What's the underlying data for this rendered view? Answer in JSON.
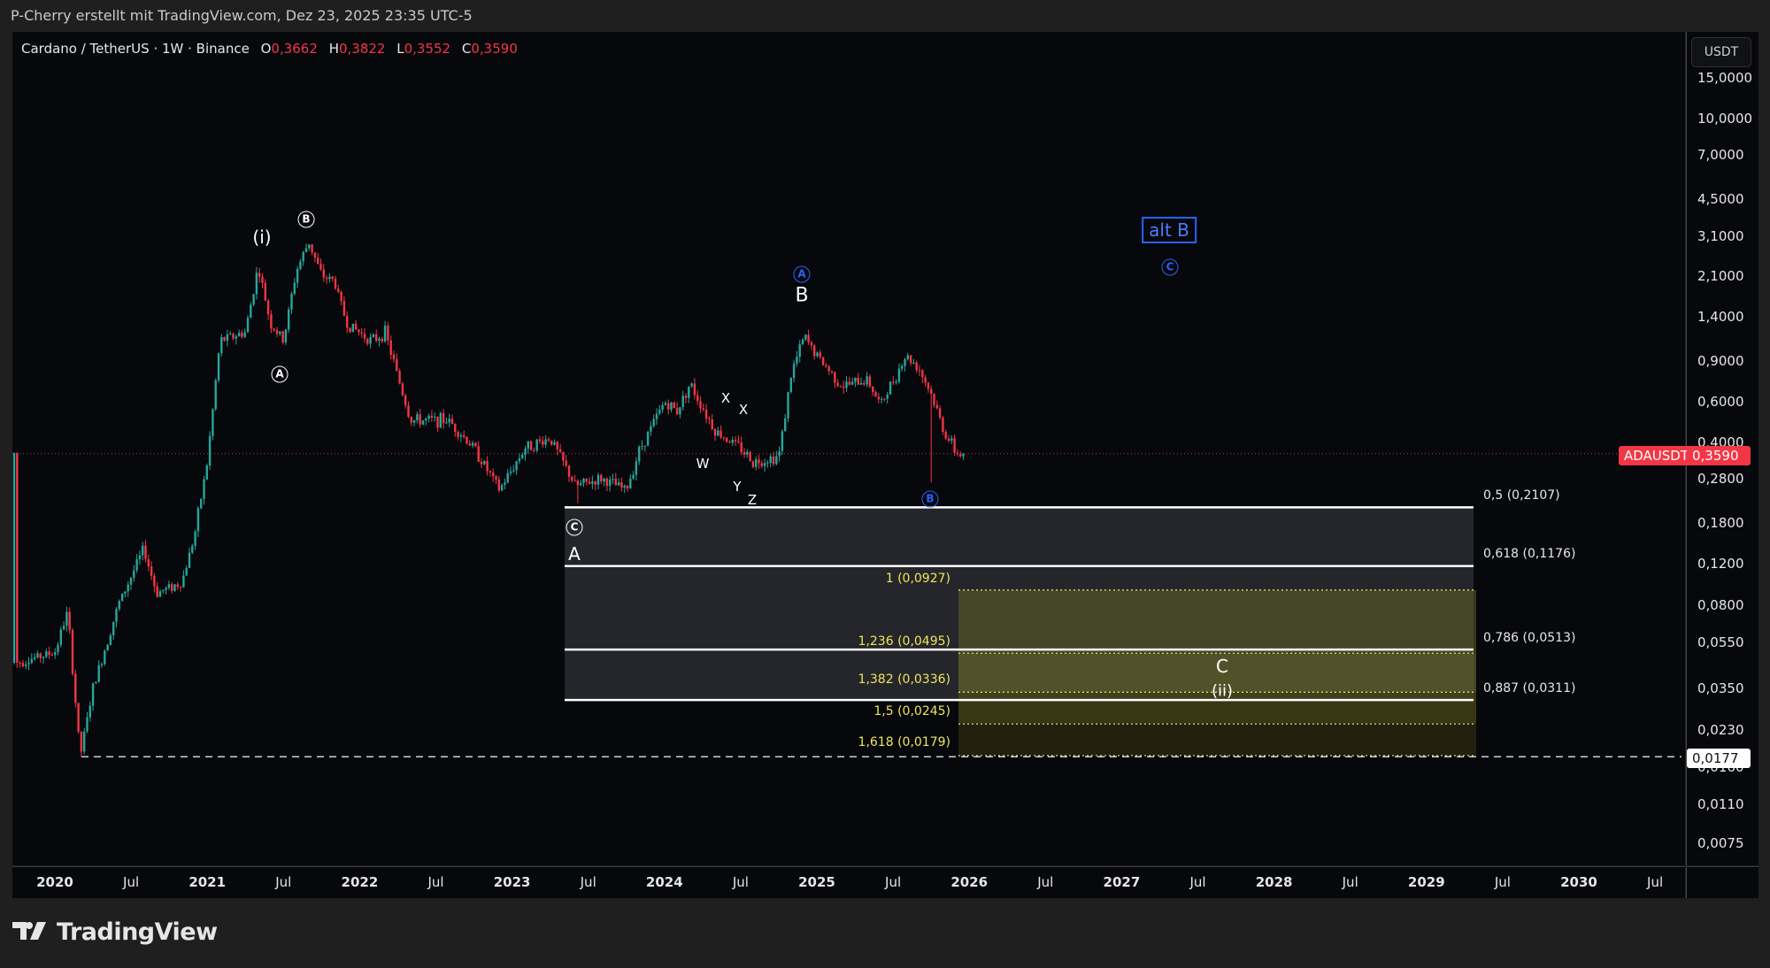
{
  "header": {
    "attribution": "P-Cherry erstellt mit TradingView.com, Dez 23, 2025 23:35 UTC-5"
  },
  "legend": {
    "symbol": "Cardano / TetherUS · 1W · Binance",
    "o_label": "O",
    "o_value": "0,3662",
    "h_label": "H",
    "h_value": "0,3822",
    "l_label": "L",
    "l_value": "0,3552",
    "c_label": "C",
    "c_value": "0,3590"
  },
  "price_axis": {
    "currency": "USDT",
    "ticks": [
      "15,0000",
      "10,0000",
      "7,0000",
      "4,5000",
      "3,1000",
      "2,1000",
      "1,4000",
      "0,9000",
      "0,6000",
      "0,4000",
      "0,2800",
      "0,1800",
      "0,1200",
      "0,0800",
      "0,0550",
      "0,0350",
      "0,0230",
      "0,0160",
      "0,0110",
      "0,0075"
    ],
    "last_price_tag": {
      "symbol": "ADAUSDT",
      "value": "0,3590"
    },
    "low_tag": "0,0177"
  },
  "time_axis": {
    "ticks": [
      {
        "label": "2020",
        "year": true
      },
      {
        "label": "Jul",
        "year": false
      },
      {
        "label": "2021",
        "year": true
      },
      {
        "label": "Jul",
        "year": false
      },
      {
        "label": "2022",
        "year": true
      },
      {
        "label": "Jul",
        "year": false
      },
      {
        "label": "2023",
        "year": true
      },
      {
        "label": "Jul",
        "year": false
      },
      {
        "label": "2024",
        "year": true
      },
      {
        "label": "Jul",
        "year": false
      },
      {
        "label": "2025",
        "year": true
      },
      {
        "label": "Jul",
        "year": false
      },
      {
        "label": "2026",
        "year": true
      },
      {
        "label": "Jul",
        "year": false
      },
      {
        "label": "2027",
        "year": true
      },
      {
        "label": "Jul",
        "year": false
      },
      {
        "label": "2028",
        "year": true
      },
      {
        "label": "Jul",
        "year": false
      },
      {
        "label": "2029",
        "year": true
      },
      {
        "label": "Jul",
        "year": false
      },
      {
        "label": "2030",
        "year": true
      },
      {
        "label": "Jul",
        "year": false
      }
    ]
  },
  "annotations": {
    "wave_i": "(i)",
    "wave_circ_b_top": "B",
    "wave_circ_a_low": "A",
    "wave_circ_c": "C",
    "wave_A": "A",
    "wave_B": "B",
    "blue_circ_a": "A",
    "blue_circ_b": "B",
    "blue_circ_c": "C",
    "alt_b": "alt B",
    "w": "W",
    "x1": "X",
    "x2": "X",
    "y": "Y",
    "z": "Z",
    "wave_C": "C",
    "wave_ii": "(ii)"
  },
  "fib_retracement": {
    "levels": [
      {
        "label": "0,5 (0,2107)"
      },
      {
        "label": "0,618 (0,1176)"
      },
      {
        "label": "0,786 (0,0513)"
      },
      {
        "label": "0,887 (0,0311)"
      }
    ]
  },
  "fib_extension": {
    "levels": [
      {
        "label": "1 (0,0927)"
      },
      {
        "label": "1,236 (0,0495)"
      },
      {
        "label": "1,382 (0,0336)"
      },
      {
        "label": "1,5 (0,0245)"
      },
      {
        "label": "1,618 (0,0179)"
      }
    ]
  },
  "branding": {
    "logo_text": "TradingView"
  },
  "colors": {
    "up": "#26a69a",
    "down": "#f23645",
    "fib_ext": "#f0e35e",
    "wave_blue": "#2962ff"
  },
  "chart_data": {
    "type": "candlestick",
    "title": "Cardano / TetherUS · 1W · Binance",
    "symbol": "ADAUSDT",
    "interval": "1W",
    "y_scale": "log",
    "ylim": [
      0.0075,
      15
    ],
    "x_range": [
      "2019-10",
      "2030-11"
    ],
    "last": {
      "open": 0.3662,
      "high": 0.3822,
      "low": 0.3552,
      "close": 0.359
    },
    "price_path_keypoints": [
      [
        "2019-10",
        0.045
      ],
      [
        "2020-01",
        0.05
      ],
      [
        "2020-02",
        0.075
      ],
      [
        "2020-03",
        0.0177
      ],
      [
        "2020-04",
        0.035
      ],
      [
        "2020-06",
        0.08
      ],
      [
        "2020-08",
        0.14
      ],
      [
        "2020-09",
        0.09
      ],
      [
        "2020-11",
        0.1
      ],
      [
        "2020-12",
        0.16
      ],
      [
        "2021-01",
        0.33
      ],
      [
        "2021-02",
        1.1
      ],
      [
        "2021-04",
        1.2
      ],
      [
        "2021-05",
        2.3
      ],
      [
        "2021-06",
        1.3
      ],
      [
        "2021-07",
        1.1
      ],
      [
        "2021-08",
        2.2
      ],
      [
        "2021-09",
        2.95
      ],
      [
        "2021-10",
        2.1
      ],
      [
        "2021-11",
        2.0
      ],
      [
        "2021-12",
        1.3
      ],
      [
        "2022-02",
        1.1
      ],
      [
        "2022-03",
        1.2
      ],
      [
        "2022-05",
        0.5
      ],
      [
        "2022-08",
        0.5
      ],
      [
        "2022-10",
        0.38
      ],
      [
        "2022-12",
        0.25
      ],
      [
        "2023-02",
        0.38
      ],
      [
        "2023-04",
        0.42
      ],
      [
        "2023-06",
        0.26
      ],
      [
        "2023-08",
        0.28
      ],
      [
        "2023-10",
        0.25
      ],
      [
        "2023-11",
        0.37
      ],
      [
        "2024-01",
        0.6
      ],
      [
        "2024-02",
        0.55
      ],
      [
        "2024-03",
        0.72
      ],
      [
        "2024-05",
        0.45
      ],
      [
        "2024-07",
        0.38
      ],
      [
        "2024-08",
        0.33
      ],
      [
        "2024-10",
        0.35
      ],
      [
        "2024-11",
        0.8
      ],
      [
        "2024-12",
        1.15
      ],
      [
        "2025-01",
        0.95
      ],
      [
        "2025-03",
        0.7
      ],
      [
        "2025-05",
        0.75
      ],
      [
        "2025-06",
        0.58
      ],
      [
        "2025-08",
        0.95
      ],
      [
        "2025-09",
        0.85
      ],
      [
        "2025-10",
        0.65
      ],
      [
        "2025-11",
        0.45
      ],
      [
        "2025-12",
        0.359
      ]
    ],
    "annotations": [
      "(i)",
      "Ⓑ",
      "Ⓐ",
      "Ⓒ",
      "A",
      "B",
      "W",
      "X",
      "X",
      "Y",
      "Z",
      "Ⓐ (blue)",
      "Ⓑ (blue)",
      "Ⓒ (blue)",
      "alt B",
      "C",
      "(ii)"
    ],
    "fib_retracement": {
      "0.5": 0.2107,
      "0.618": 0.1176,
      "0.786": 0.0513,
      "0.887": 0.0311
    },
    "fib_extension": {
      "1": 0.0927,
      "1.236": 0.0495,
      "1.382": 0.0336,
      "1.5": 0.0245,
      "1.618": 0.0179
    },
    "horizontal_line": 0.0177,
    "grid": false,
    "legend_position": "top-left"
  }
}
